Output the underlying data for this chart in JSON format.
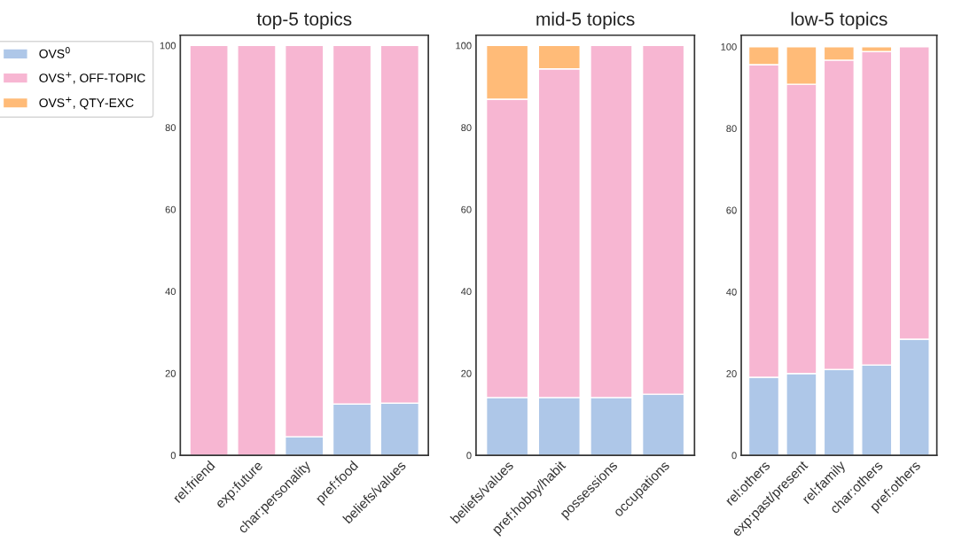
{
  "chart_data": [
    {
      "type": "bar",
      "title": "top-5 topics",
      "stacked": true,
      "legend": "left",
      "grid": false,
      "categories": [
        "rel:friend",
        "exp:future",
        "char:personality",
        "pref:food",
        "beliefs/values"
      ],
      "ylim": [
        0,
        102.5
      ],
      "yticks": [
        0,
        20,
        40,
        60,
        80,
        100
      ],
      "series": [
        {
          "name": "OVS$^{0}$",
          "color": "#aec7e8",
          "values": [
            null,
            null,
            4.5,
            12.5,
            12.7
          ]
        },
        {
          "name": "OVS$^{+}$, OFF-TOPIC",
          "color": "#f7b6d2",
          "values": [
            100,
            100,
            95.5,
            87.5,
            87.3
          ]
        },
        {
          "name": "OVS$^{+}$, QTY-EXC",
          "color": "#ffbb78",
          "values": [
            null,
            null,
            null,
            null,
            null
          ]
        }
      ]
    },
    {
      "type": "bar",
      "title": "mid-5 topics",
      "stacked": true,
      "grid": false,
      "categories": [
        "beliefs/values",
        "pref:hobby/habit",
        "possessions",
        "occupations"
      ],
      "ylim": [
        0,
        102.5
      ],
      "yticks": [
        0,
        20,
        40,
        60,
        80,
        100
      ],
      "series": [
        {
          "color": "#aec7e8",
          "values": [
            14.1,
            14.1,
            14.1,
            14.9
          ]
        },
        {
          "color": "#f7b6d2",
          "values": [
            72.8,
            80.2,
            85.9,
            85.1
          ]
        },
        {
          "color": "#ffbb78",
          "values": [
            13.1,
            5.7,
            null,
            null
          ]
        }
      ]
    },
    {
      "type": "bar",
      "title": "low-5 topics",
      "stacked": true,
      "grid": false,
      "categories": [
        "rel:others",
        "exp:past/present",
        "rel:family",
        "char:others",
        "pref:others"
      ],
      "ylim": [
        0,
        102.8
      ],
      "yticks": [
        0,
        20,
        40,
        60,
        80,
        100
      ],
      "series": [
        {
          "color": "#aec7e8",
          "values": [
            19.1,
            20.0,
            21.0,
            22.1,
            28.4
          ]
        },
        {
          "color": "#f7b6d2",
          "values": [
            76.5,
            70.8,
            75.7,
            76.7,
            71.6
          ]
        },
        {
          "color": "#ffbb78",
          "values": [
            4.4,
            9.2,
            3.3,
            1.2,
            null
          ]
        }
      ]
    }
  ]
}
